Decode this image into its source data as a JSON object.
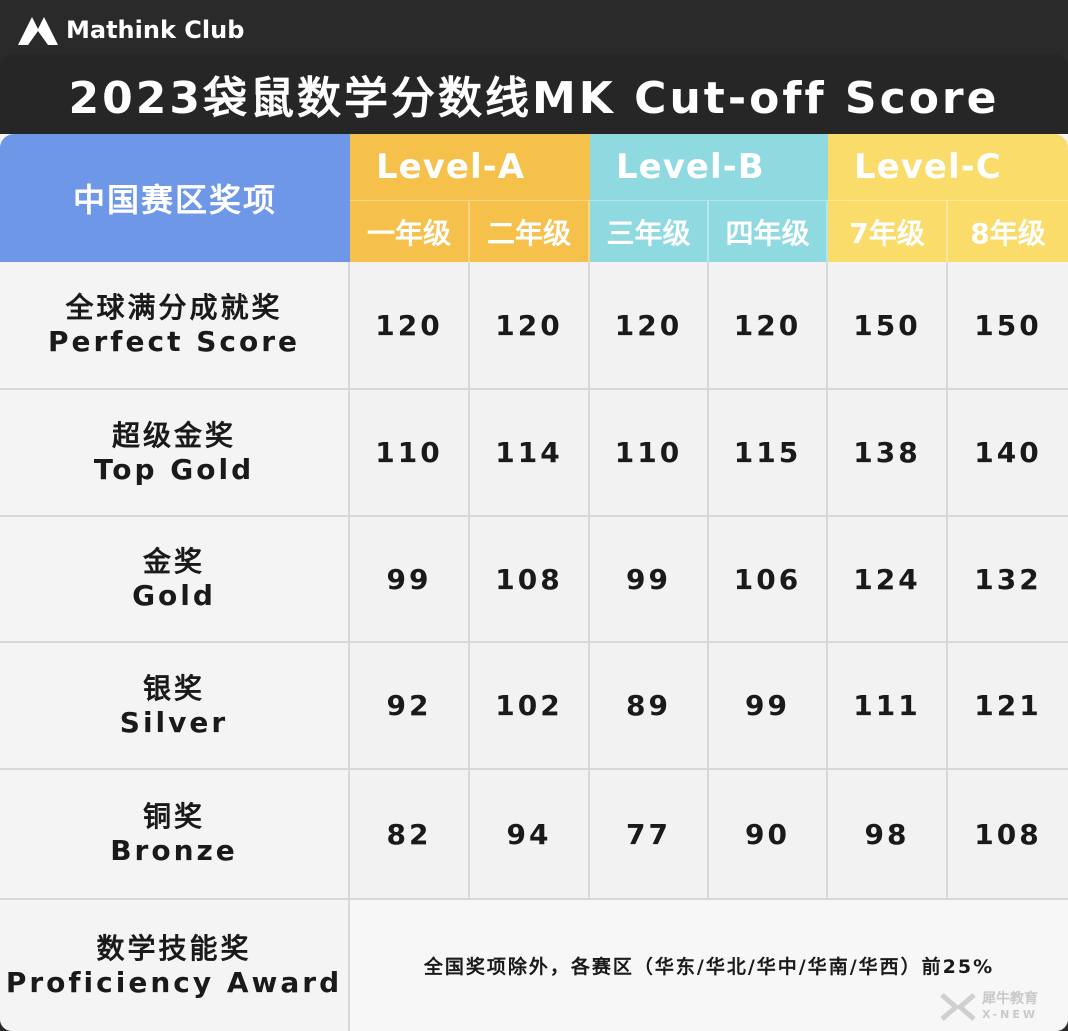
{
  "brand": {
    "name": "Mathink Club"
  },
  "title": "2023袋鼠数学分数线MK Cut-off Score",
  "table": {
    "corner_label": "中国赛区奖项",
    "levels": [
      {
        "name": "Level-A",
        "color": "#f5c14a",
        "grades": [
          "一年级",
          "二年级"
        ]
      },
      {
        "name": "Level-B",
        "color": "#8fd9e0",
        "grades": [
          "三年级",
          "四年级"
        ]
      },
      {
        "name": "Level-C",
        "color": "#f9dc6a",
        "grades": [
          "7年级",
          "8年级"
        ]
      }
    ],
    "rows": [
      {
        "cn": "全球满分成就奖",
        "en": "Perfect Score",
        "values": [
          "120",
          "120",
          "120",
          "120",
          "150",
          "150"
        ]
      },
      {
        "cn": "超级金奖",
        "en": "Top Gold",
        "values": [
          "110",
          "114",
          "110",
          "115",
          "138",
          "140"
        ]
      },
      {
        "cn": "金奖",
        "en": "Gold",
        "values": [
          "99",
          "108",
          "99",
          "106",
          "124",
          "132"
        ]
      },
      {
        "cn": "银奖",
        "en": "Silver",
        "values": [
          "92",
          "102",
          "89",
          "99",
          "111",
          "121"
        ]
      },
      {
        "cn": "铜奖",
        "en": "Bronze",
        "values": [
          "82",
          "94",
          "77",
          "90",
          "98",
          "108"
        ]
      }
    ],
    "proficiency": {
      "cn": "数学技能奖",
      "en": "Proficiency Award",
      "note": "全国奖项除外，各赛区（华东/华北/华中/华南/华西）前25%"
    }
  },
  "watermark": {
    "cn": "犀牛教育",
    "en": "X-NEW"
  }
}
